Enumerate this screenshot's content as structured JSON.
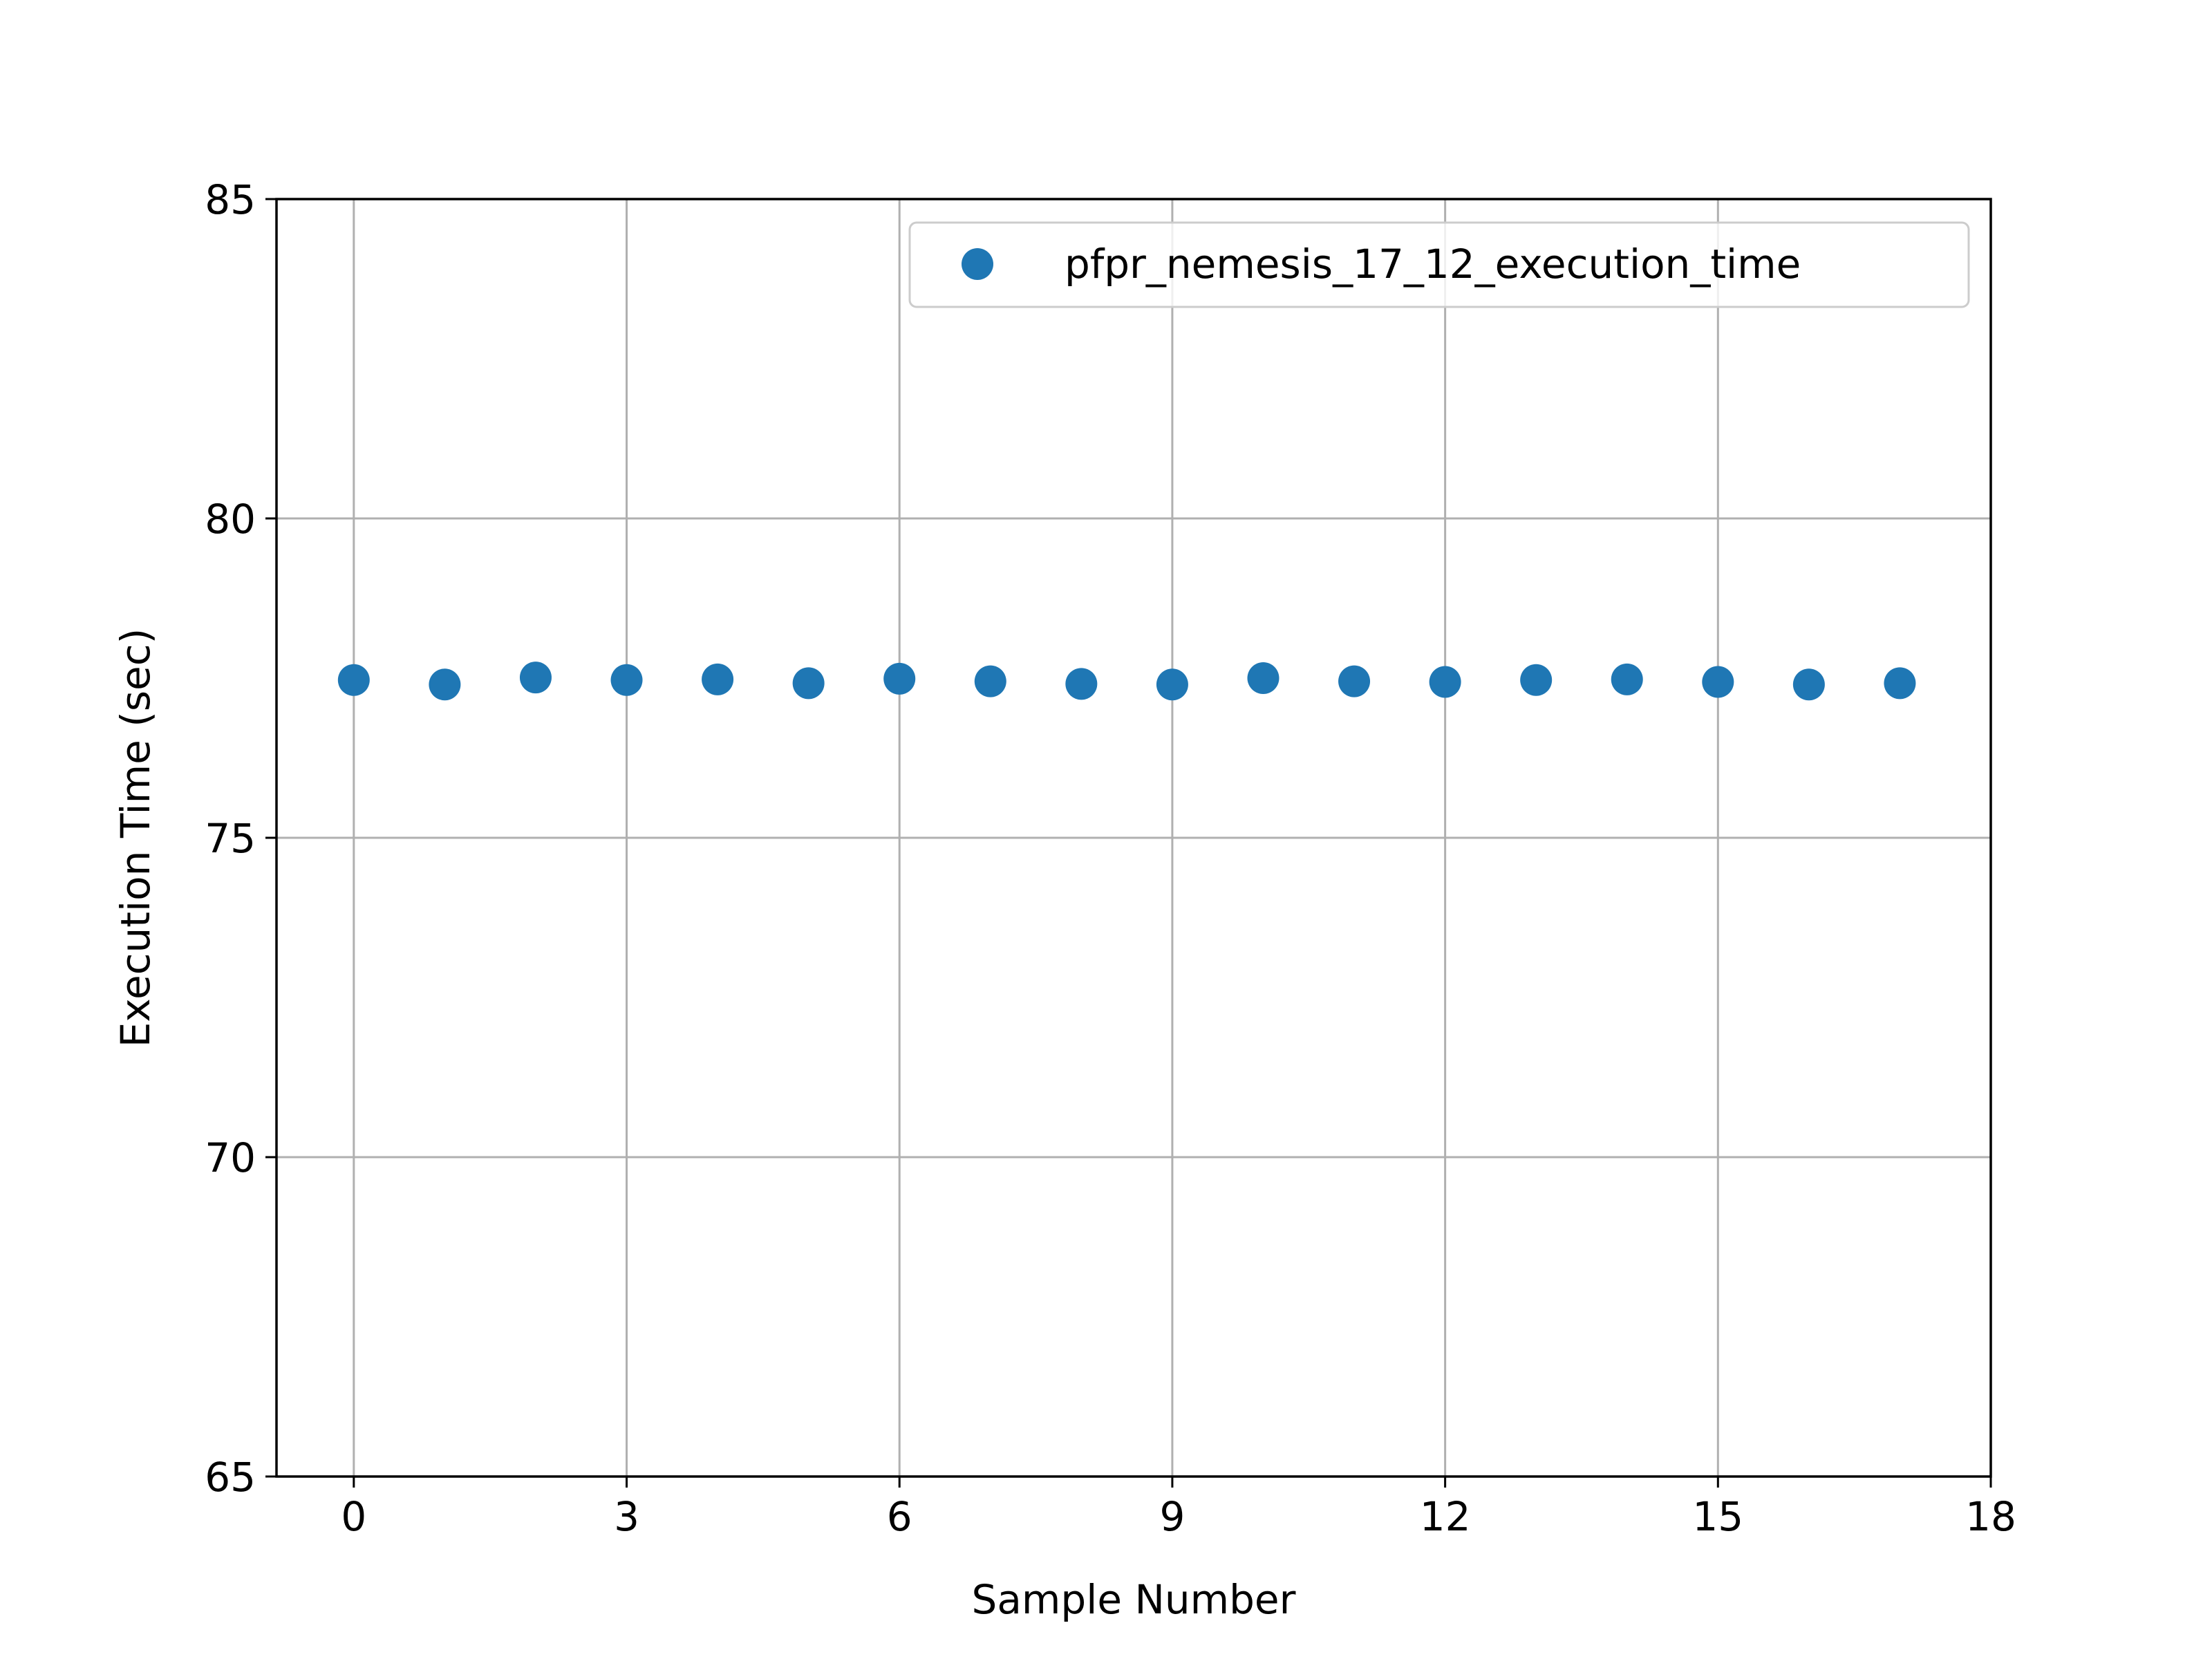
{
  "chart_data": {
    "type": "scatter",
    "title": "",
    "xlabel": "Sample Number",
    "ylabel": "Execution Time (sec)",
    "xlim": [
      -0.85,
      18
    ],
    "ylim": [
      65,
      85
    ],
    "xticks": [
      0,
      3,
      6,
      9,
      12,
      15,
      18
    ],
    "yticks": [
      65,
      70,
      75,
      80,
      85
    ],
    "grid": true,
    "legend_position": "top-right",
    "series": [
      {
        "name": "pfpr_nemesis_17_12_execution_time",
        "color": "#1f77b4",
        "marker": "circle",
        "x": [
          0,
          1,
          2,
          3,
          4,
          5,
          6,
          7,
          8,
          9,
          10,
          11,
          12,
          13,
          14,
          15,
          16,
          17
        ],
        "y": [
          77.47,
          77.4,
          77.51,
          77.47,
          77.48,
          77.42,
          77.49,
          77.45,
          77.41,
          77.4,
          77.5,
          77.45,
          77.44,
          77.47,
          77.48,
          77.44,
          77.4,
          77.42
        ]
      }
    ]
  }
}
